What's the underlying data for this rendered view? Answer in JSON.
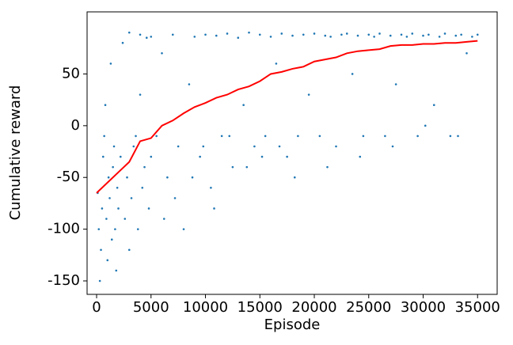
{
  "chart_data": {
    "type": "scatter",
    "xlabel": "Episode",
    "ylabel": "Cumulative reward",
    "xlim": [
      -875,
      36800
    ],
    "ylim": [
      -163,
      110
    ],
    "xticks": [
      0,
      5000,
      10000,
      15000,
      20000,
      25000,
      30000,
      35000
    ],
    "yticks": [
      -150,
      -100,
      -50,
      0,
      50
    ],
    "series": [
      {
        "kind": "scatter",
        "color": "#1f77b4",
        "x": [
          100,
          200,
          300,
          400,
          500,
          600,
          700,
          800,
          900,
          1000,
          1100,
          1200,
          1300,
          1400,
          1500,
          1600,
          1700,
          1800,
          1900,
          2000,
          2200,
          2400,
          2600,
          2800,
          3000,
          3200,
          3400,
          3600,
          3800,
          4000,
          4200,
          4400,
          4600,
          4800,
          5000,
          3000,
          4000,
          5000,
          5500,
          6000,
          6500,
          7000,
          7500,
          8000,
          8500,
          9000,
          9500,
          10000,
          10500,
          11000,
          11500,
          12000,
          12500,
          13000,
          13500,
          14000,
          14500,
          15000,
          15500,
          16000,
          16500,
          17000,
          17500,
          18000,
          18500,
          19000,
          19500,
          20000,
          6200,
          7200,
          8800,
          9800,
          10800,
          12200,
          13800,
          15200,
          16800,
          18200,
          20500,
          21000,
          21500,
          22000,
          22500,
          23000,
          23500,
          24000,
          24500,
          25000,
          25500,
          26000,
          26500,
          27000,
          27500,
          28000,
          28500,
          29000,
          29500,
          30000,
          30500,
          31000,
          31500,
          32000,
          32500,
          33000,
          33500,
          34000,
          34500,
          35000,
          21200,
          24200,
          27200,
          30200,
          33200
        ],
        "values": [
          -65,
          -100,
          -150,
          -120,
          -80,
          -30,
          -10,
          20,
          -90,
          -130,
          -50,
          -70,
          60,
          -110,
          -40,
          -20,
          -100,
          -140,
          -60,
          -80,
          -30,
          80,
          -90,
          -50,
          -120,
          -70,
          -20,
          -10,
          -100,
          30,
          -60,
          -40,
          85,
          -80,
          -30,
          90,
          88,
          86,
          -10,
          70,
          -50,
          88,
          -20,
          -100,
          40,
          86,
          -30,
          88,
          -60,
          87,
          -10,
          89,
          -40,
          85,
          20,
          90,
          -20,
          88,
          -10,
          86,
          60,
          89,
          -30,
          87,
          -10,
          88,
          30,
          89,
          -90,
          -70,
          -50,
          -20,
          -80,
          -10,
          -40,
          -30,
          -20,
          -50,
          -10,
          87,
          86,
          -20,
          88,
          89,
          50,
          87,
          -10,
          88,
          86,
          89,
          -10,
          87,
          40,
          88,
          86,
          89,
          -10,
          87,
          88,
          20,
          86,
          89,
          -10,
          87,
          88,
          70,
          86,
          88,
          -40,
          -30,
          -20,
          0,
          -10
        ]
      },
      {
        "kind": "line",
        "color": "#ff0000",
        "x": [
          0,
          1000,
          2000,
          3000,
          4000,
          5000,
          6000,
          7000,
          8000,
          9000,
          10000,
          11000,
          12000,
          13000,
          14000,
          15000,
          16000,
          17000,
          18000,
          19000,
          20000,
          21000,
          22000,
          23000,
          24000,
          25000,
          26000,
          27000,
          28000,
          29000,
          30000,
          31000,
          32000,
          33000,
          34000,
          35000
        ],
        "values": [
          -65,
          -55,
          -45,
          -35,
          -15,
          -12,
          0,
          5,
          12,
          18,
          22,
          27,
          30,
          35,
          38,
          43,
          50,
          52,
          55,
          57,
          62,
          64,
          66,
          70,
          72,
          73,
          74,
          77,
          78,
          78,
          79,
          79,
          80,
          80,
          81,
          82
        ]
      }
    ]
  }
}
